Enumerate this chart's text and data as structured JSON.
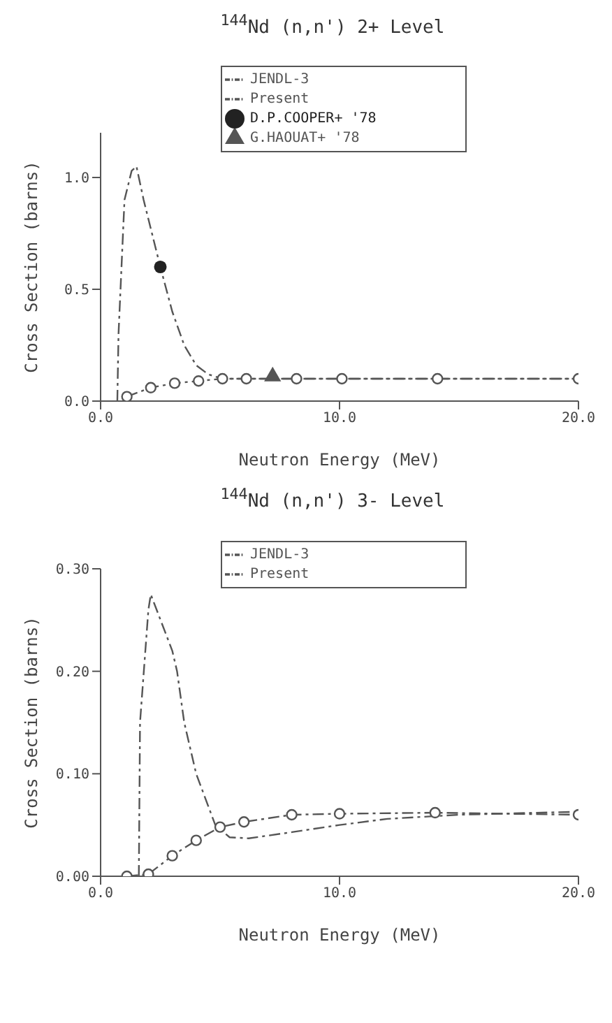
{
  "chart_data": [
    {
      "type": "line",
      "title": "$^{144}$Nd (n,n') 2+ Level",
      "xlabel": "Neutron Energy (MeV)",
      "ylabel": "Cross Section (barns)",
      "xlim": [
        0,
        20
      ],
      "xticks": [
        {
          "value": 0,
          "label": "0.0"
        },
        {
          "value": 10,
          "label": "10.0"
        },
        {
          "value": 20,
          "label": "20.0"
        }
      ],
      "ylim": [
        0,
        1.2
      ],
      "yticks": [
        {
          "value": 0,
          "label": "0.0"
        },
        {
          "value": 0.5,
          "label": "0.5"
        },
        {
          "value": 1,
          "label": "1.0"
        }
      ],
      "legend": "top",
      "line_style": "dashed",
      "grid": false,
      "series": [
        {
          "name": "JENDL-3",
          "color": "#555555",
          "marker": "none",
          "x": [
            0.7,
            0.75,
            1.0,
            1.3,
            1.5,
            1.8,
            2.5,
            3.0,
            3.5,
            4.0,
            4.5,
            5.1,
            6,
            8,
            10,
            14,
            20
          ],
          "values": [
            0,
            0.3,
            0.9,
            1.03,
            1.05,
            0.9,
            0.6,
            0.4,
            0.25,
            0.16,
            0.12,
            0.1,
            0.1,
            0.1,
            0.1,
            0.1,
            0.1
          ]
        },
        {
          "name": "Present",
          "color": "#555555",
          "marker": "circle",
          "x": [
            1.1,
            2.1,
            3.1,
            4.1,
            5.1,
            6.1,
            8.2,
            10.1,
            14.1,
            20
          ],
          "values": [
            0.02,
            0.06,
            0.08,
            0.09,
            0.1,
            0.1,
            0.1,
            0.1,
            0.1,
            0.1
          ]
        },
        {
          "type": "scatter",
          "name": "D.P.COOPER+ '78",
          "color": "#222222",
          "marker": "circle",
          "x": [
            2.5
          ],
          "values": [
            0.6
          ]
        },
        {
          "type": "scatter",
          "name": "G.HAOUAT+ '78",
          "color": "#555555",
          "marker": "triangle",
          "x": [
            7.2
          ],
          "values": [
            0.11
          ]
        }
      ]
    },
    {
      "type": "line",
      "title": "$^{144}$Nd (n,n') 3- Level",
      "xlabel": "Neutron Energy (MeV)",
      "ylabel": "Cross Section (barns)",
      "xlim": [
        0,
        20
      ],
      "xticks": [
        {
          "value": 0,
          "label": "0.0"
        },
        {
          "value": 10,
          "label": "10.0"
        },
        {
          "value": 20,
          "label": "20.0"
        }
      ],
      "ylim": [
        0,
        0.3
      ],
      "yticks": [
        {
          "value": 0,
          "label": "0.00"
        },
        {
          "value": 0.1,
          "label": "0.10"
        },
        {
          "value": 0.2,
          "label": "0.20"
        },
        {
          "value": 0.3,
          "label": "0.30"
        }
      ],
      "legend": "top",
      "line_style": "dashed",
      "grid": false,
      "series": [
        {
          "name": "JENDL-3",
          "color": "#555555",
          "marker": "none",
          "x": [
            1.6,
            1.65,
            2.0,
            2.1,
            3.0,
            3.2,
            3.5,
            4.0,
            4.8,
            5.4,
            6.2,
            8,
            10,
            12,
            15,
            20
          ],
          "values": [
            0,
            0.15,
            0.26,
            0.275,
            0.22,
            0.2,
            0.15,
            0.1,
            0.05,
            0.038,
            0.037,
            0.043,
            0.05,
            0.056,
            0.06,
            0.063
          ]
        },
        {
          "name": "Present",
          "color": "#555555",
          "marker": "circle",
          "x": [
            1.1,
            2.0,
            3.0,
            4.0,
            5.0,
            6.0,
            8.0,
            10.0,
            14.0,
            20.0
          ],
          "values": [
            0,
            0.002,
            0.02,
            0.035,
            0.048,
            0.053,
            0.06,
            0.061,
            0.062,
            0.06
          ]
        }
      ]
    }
  ]
}
